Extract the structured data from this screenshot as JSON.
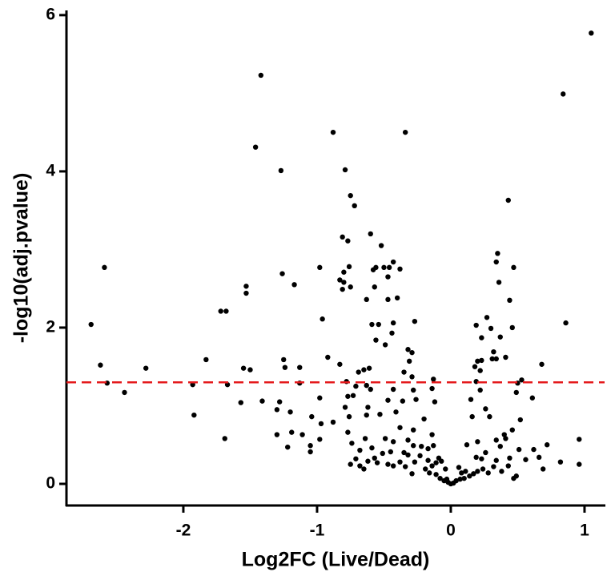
{
  "chart_data": {
    "type": "scatter",
    "x_label": "Log2FC (Live/Dead)",
    "y_label": "-log10(adj.pvalue)",
    "xlim": [
      -2.874,
      1.15
    ],
    "ylim": [
      -0.277,
      6.05
    ],
    "xticks": [
      -2,
      -1,
      0,
      1
    ],
    "yticks": [
      0,
      2,
      4,
      6
    ],
    "grid": false,
    "reference_line": {
      "value": 1.3,
      "color": "#e41a1c"
    },
    "series": [
      {
        "color": "#000000",
        "x": [
          1.05,
          0.84,
          -1.42,
          -0.88,
          -0.34,
          -1.46,
          -1.27,
          -0.79,
          0.43,
          -0.75,
          -0.72,
          -0.6,
          -0.81,
          -0.77,
          -0.52,
          -0.43,
          0.35,
          0.34,
          -2.59,
          -0.98,
          0.47,
          -0.58,
          -0.56,
          -0.5,
          -0.46,
          -0.38,
          -1.26,
          -0.8,
          -0.76,
          -0.83,
          -0.8,
          -1.17,
          -1.53,
          -1.53,
          0.36,
          -0.81,
          -0.75,
          -0.57,
          -0.47,
          -0.63,
          -0.47,
          -0.4,
          -1.72,
          -1.68,
          0.44,
          -0.96,
          -2.69,
          0.27,
          -0.59,
          -0.54,
          -0.43,
          -0.27,
          0.86,
          0.46,
          0.19,
          -0.44,
          -0.56,
          -0.49,
          -0.32,
          -0.29,
          0.3,
          0.37,
          0.32,
          0.23,
          0.2,
          0.23,
          0.31,
          0.34,
          0.41,
          -0.92,
          -1.83,
          -1.25,
          -1.24,
          -0.83,
          -0.61,
          -0.65,
          -1.13,
          -2.62,
          -2.28,
          -1.55,
          -1.5,
          -0.31,
          -0.35,
          -0.29,
          -0.69,
          -0.63,
          -0.6,
          -2.57,
          -1.67,
          -1.93,
          0.18,
          0.22,
          0.19,
          0.53,
          0.68,
          0.5,
          0.49,
          -2.44,
          -1.57,
          -1.41,
          -1.28,
          -1.3,
          -1.13,
          -0.98,
          -0.77,
          -0.73,
          -0.78,
          -0.71,
          -0.62,
          -0.47,
          -0.43,
          -0.36,
          -0.26,
          -0.28,
          -0.12,
          -0.13,
          -0.14,
          0.15,
          0.22,
          0.16,
          0.61,
          -1.92,
          -1.2,
          -1.04,
          -0.97,
          -0.88,
          -0.63,
          -0.53,
          -0.41,
          -0.38,
          -0.28,
          -0.2,
          -0.14,
          0.26,
          0.29,
          0.52,
          0.46,
          0.4,
          -1.69,
          -1.3,
          -1.19,
          -1.11,
          -1.22,
          -1.05,
          -1.05,
          -0.98,
          -0.77,
          -0.74,
          -0.64,
          -0.59,
          -0.49,
          -0.43,
          -0.32,
          -0.28,
          -0.22,
          -0.17,
          -0.13,
          0.12,
          0.2,
          0.34,
          0.41,
          0.37,
          0.26,
          0.51,
          0.62,
          0.72,
          0.66,
          0.69,
          0.96,
          0.96,
          0.82,
          -0.75,
          -0.68,
          -0.65,
          -0.55,
          -0.47,
          -0.43,
          -0.38,
          -0.34,
          -0.29,
          -0.19,
          -0.16,
          -0.11,
          -0.08,
          -0.05,
          -0.02,
          0,
          0.02,
          0.04,
          0.07,
          0.1,
          0.14,
          0.17,
          0.2,
          0.24,
          0.28,
          0.32,
          0.38,
          0.43,
          0.47,
          0.49,
          0.56,
          0.44,
          0.34,
          0.23,
          0.19,
          -0.23,
          -0.32,
          -0.35,
          -0.27,
          -0.09,
          -0.07,
          -0.04,
          -0.11,
          -0.14,
          -0.17,
          -0.03,
          0.08,
          0.11,
          0.06,
          -0.45,
          -0.51,
          -0.57,
          -0.62,
          -0.71,
          -0.68,
          -0.79,
          -0.76
        ],
        "y": [
          5.77,
          4.99,
          5.23,
          4.5,
          4.5,
          4.31,
          4.01,
          4.02,
          3.63,
          3.69,
          3.56,
          3.2,
          3.16,
          3.11,
          3.05,
          2.84,
          2.95,
          2.84,
          2.77,
          2.77,
          2.77,
          2.74,
          2.77,
          2.77,
          2.77,
          2.75,
          2.69,
          2.71,
          2.78,
          2.61,
          2.58,
          2.55,
          2.53,
          2.44,
          2.58,
          2.49,
          2.52,
          2.52,
          2.65,
          2.36,
          2.36,
          2.38,
          2.21,
          2.21,
          2.35,
          2.11,
          2.04,
          2.13,
          2.04,
          2.04,
          2.06,
          2.08,
          2.06,
          2.0,
          2.03,
          1.93,
          1.84,
          1.78,
          1.72,
          1.68,
          1.99,
          1.88,
          1.69,
          1.87,
          1.57,
          1.58,
          1.6,
          1.6,
          1.62,
          1.62,
          1.59,
          1.59,
          1.49,
          1.53,
          1.48,
          1.46,
          1.49,
          1.52,
          1.48,
          1.48,
          1.46,
          1.57,
          1.43,
          1.37,
          1.43,
          1.26,
          1.21,
          1.29,
          1.27,
          1.27,
          1.5,
          1.45,
          1.31,
          1.33,
          1.53,
          1.29,
          1.17,
          1.17,
          1.04,
          1.06,
          1.05,
          0.95,
          1.29,
          1.1,
          1.12,
          1.13,
          1.31,
          1.25,
          0.98,
          1.07,
          1.21,
          1.06,
          1.08,
          1.2,
          1.05,
          1.34,
          1.22,
          1.08,
          1.2,
          0.86,
          1.1,
          0.88,
          0.92,
          0.86,
          0.77,
          0.79,
          0.88,
          0.89,
          0.92,
          0.72,
          0.69,
          0.83,
          0.63,
          0.96,
          0.86,
          0.82,
          0.69,
          0.63,
          0.58,
          0.63,
          0.66,
          0.63,
          0.47,
          0.49,
          0.41,
          0.57,
          0.66,
          0.52,
          0.58,
          0.46,
          0.58,
          0.54,
          0.56,
          0.49,
          0.48,
          0.45,
          0.49,
          0.5,
          0.54,
          0.56,
          0.58,
          0.48,
          0.4,
          0.44,
          0.44,
          0.5,
          0.34,
          0.19,
          0.57,
          0.25,
          0.28,
          0.25,
          0.23,
          0.19,
          0.27,
          0.25,
          0.23,
          0.28,
          0.22,
          0.13,
          0.19,
          0.14,
          0.12,
          0.07,
          0.04,
          0.02,
          0,
          0.01,
          0.04,
          0.06,
          0.07,
          0.1,
          0.13,
          0.16,
          0.19,
          0.14,
          0.22,
          0.16,
          0.23,
          0.07,
          0.1,
          0.31,
          0.33,
          0.3,
          0.32,
          0.34,
          0.36,
          0.37,
          0.4,
          0.28,
          0.33,
          0.29,
          0.19,
          0.27,
          0.23,
          0.3,
          0.06,
          0.14,
          0.16,
          0.21,
          0.41,
          0.39,
          0.33,
          0.29,
          0.32,
          0.43,
          0.98,
          0.86
        ]
      }
    ]
  }
}
